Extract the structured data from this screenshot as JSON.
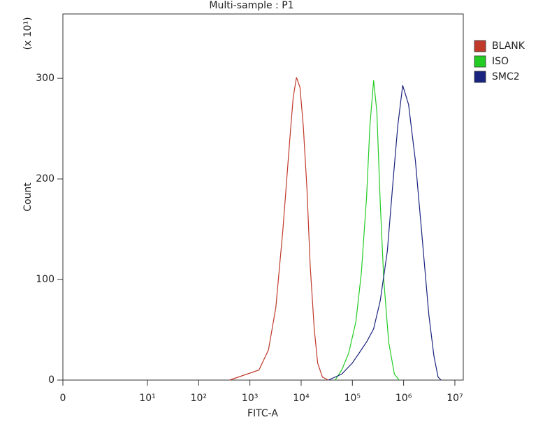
{
  "chart_data": {
    "type": "line",
    "title": "Multi-sample : P1",
    "x_label": "FITC-A",
    "y_label": "Count",
    "y_multiplier": "(x 10¹)",
    "x_scale": "log",
    "legend": "outside-right",
    "xlim": [
      0,
      14600000
    ],
    "xticks": [
      0,
      {
        "value": 10,
        "label": "10¹"
      },
      {
        "value": 100,
        "label": "10²"
      },
      {
        "value": 1000,
        "label": "10³"
      },
      {
        "value": 10000,
        "label": "10⁴"
      },
      {
        "value": 100000,
        "label": "10⁵"
      },
      {
        "value": 1000000,
        "label": "10⁶"
      },
      {
        "value": 10000000,
        "label": "10⁷"
      }
    ],
    "ylim": [
      0,
      364
    ],
    "yticks": [
      0,
      100,
      200,
      300
    ],
    "series": [
      {
        "name": "BLANK",
        "color": "#c0392b",
        "x": [
          400,
          1500,
          2300,
          3200,
          4400,
          6000,
          7000,
          8100,
          9500,
          11000,
          13000,
          15000,
          18000,
          21000,
          26000,
          34000
        ],
        "values": [
          0,
          10,
          30,
          72,
          149,
          239,
          281,
          301,
          291,
          253,
          190,
          114,
          51,
          17,
          3,
          0
        ]
      },
      {
        "name": "ISO",
        "color": "#22cc22",
        "x": [
          46000,
          62000,
          85000,
          117000,
          150000,
          190000,
          220000,
          260000,
          300000,
          350000,
          410000,
          510000,
          660000,
          820000
        ],
        "values": [
          0,
          10,
          27,
          58,
          107,
          183,
          253,
          298,
          267,
          176,
          100,
          38,
          6,
          0
        ]
      },
      {
        "name": "SMC2",
        "color": "#1a237e",
        "x": [
          34000,
          62000,
          100000,
          136000,
          190000,
          260000,
          350000,
          480000,
          620000,
          770000,
          960000,
          1250000,
          1700000,
          2300000,
          3100000,
          3900000,
          4700000,
          5400000
        ],
        "values": [
          0,
          6,
          17,
          27,
          38,
          51,
          79,
          128,
          197,
          253,
          293,
          274,
          218,
          142,
          65,
          24,
          3,
          0
        ]
      }
    ]
  }
}
